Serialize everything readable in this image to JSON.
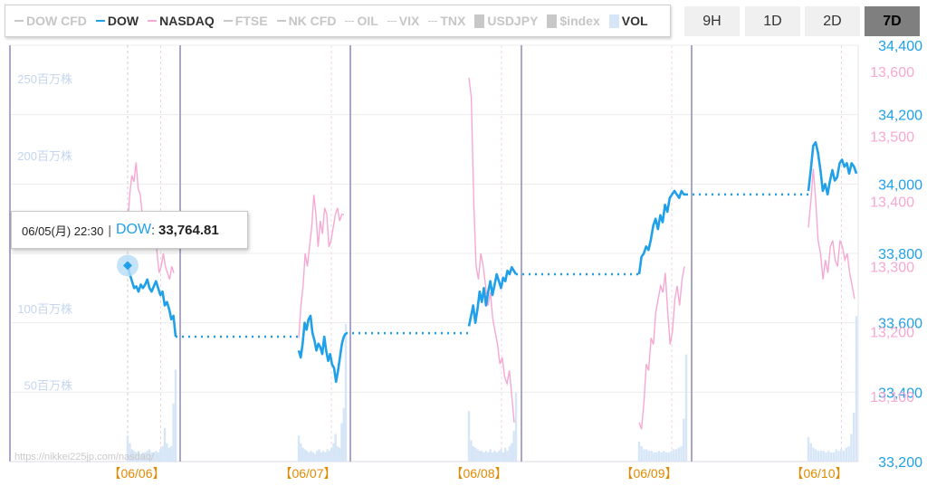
{
  "legend": [
    {
      "label": "DOW CFD",
      "color": "#c8c8c8",
      "style": "line",
      "muted": true
    },
    {
      "label": "DOW",
      "color": "#1fa0e8",
      "style": "line",
      "muted": false
    },
    {
      "label": "NASDAQ",
      "color": "#f7a8d2",
      "style": "line",
      "muted": false
    },
    {
      "label": "FTSE",
      "color": "#c8c8c8",
      "style": "line",
      "muted": true
    },
    {
      "label": "NK CFD",
      "color": "#c8c8c8",
      "style": "line",
      "muted": true
    },
    {
      "label": "OIL",
      "color": "#c8c8c8",
      "style": "dash",
      "muted": true
    },
    {
      "label": "VIX",
      "color": "#c8c8c8",
      "style": "dash",
      "muted": true
    },
    {
      "label": "TNX",
      "color": "#c8c8c8",
      "style": "dash",
      "muted": true
    },
    {
      "label": "USDJPY",
      "color": "#c8c8c8",
      "style": "box",
      "muted": true
    },
    {
      "label": "$index",
      "color": "#c8c8c8",
      "style": "box",
      "muted": true
    },
    {
      "label": "VOL",
      "color": "#d6e6f7",
      "style": "box",
      "muted": false
    }
  ],
  "range_buttons": [
    "9H",
    "1D",
    "2D",
    "7D"
  ],
  "active_range": "7D",
  "tooltip": {
    "timestamp": "06/05(月) 22:30",
    "series": "DOW",
    "value": "33,764.81"
  },
  "watermark": "https://nikkei225jp.com/nasdaq/",
  "colors": {
    "dow": "#1fa0e8",
    "nasdaq": "#f7a8d2",
    "vol": "#d6e6f7",
    "day_line": "#a9a6c8",
    "date_label": "#e08a00",
    "vol_axis": "#c3d6ee"
  },
  "chart_data": {
    "type": "line",
    "x_labels": [
      "【06/06】",
      "【06/07】",
      "【06/08】",
      "【06/09】",
      "【06/10】"
    ],
    "dow_axis": {
      "ticks": [
        33200,
        33400,
        33600,
        33800,
        34000,
        34200,
        34400
      ],
      "labels": [
        "33,200",
        "33,400",
        "33,600",
        "33,800",
        "34,000",
        "34,200",
        "34,400"
      ],
      "ylim": [
        33200,
        34400
      ]
    },
    "nasdaq_axis": {
      "ticks": [
        13100,
        13200,
        13300,
        13400,
        13500,
        13600
      ],
      "labels": [
        "13,100",
        "13,200",
        "13,300",
        "13,400",
        "13,500",
        "13,600"
      ],
      "ylim": [
        13000,
        13640
      ]
    },
    "vol_axis": {
      "ticks": [
        50,
        100,
        200,
        250
      ],
      "labels": [
        "50百万株",
        "100百万株",
        "200百万株",
        "250百万株"
      ],
      "ylim": [
        0,
        272
      ]
    },
    "days": [
      {
        "dow": [
          33765,
          33740,
          33720,
          33700,
          33705,
          33690,
          33710,
          33700,
          33710,
          33725,
          33700,
          33690,
          33705,
          33720,
          33700,
          33680,
          33690,
          33650,
          33660,
          33640,
          33610,
          33620,
          33560
        ],
        "dow_close": 33560,
        "nasdaq": [
          13360,
          13410,
          13440,
          13430,
          13460,
          13420,
          13410,
          13380,
          13360,
          13350,
          13380,
          13370,
          13340,
          13360,
          13320,
          13290,
          13300,
          13320,
          13300,
          13290,
          13280,
          13300,
          13290
        ],
        "vol": [
          17,
          12,
          8,
          7,
          6,
          7,
          5,
          6,
          6,
          7,
          8,
          6,
          6,
          7,
          6,
          8,
          10,
          22,
          12,
          9,
          10,
          38,
          60
        ]
      },
      {
        "dow": [
          33520,
          33500,
          33540,
          33600,
          33580,
          33610,
          33620,
          33570,
          33550,
          33520,
          33540,
          33530,
          33510,
          33560,
          33520,
          33490,
          33510,
          33480,
          33470,
          33430,
          33460,
          33500,
          33540,
          33560,
          33570
        ],
        "dow_close": 33570,
        "nasdaq": [
          13190,
          13240,
          13270,
          13320,
          13300,
          13330,
          13360,
          13410,
          13380,
          13330,
          13370,
          13350,
          13390,
          13380,
          13330,
          13340,
          13360,
          13380,
          13390,
          13370,
          13380,
          13380
        ],
        "vol": [
          17,
          12,
          9,
          8,
          7,
          6,
          7,
          6,
          5,
          7,
          8,
          6,
          7,
          6,
          8,
          7,
          9,
          12,
          18,
          10,
          9,
          25,
          35,
          90
        ]
      },
      {
        "dow": [
          33590,
          33620,
          33650,
          33600,
          33640,
          33690,
          33660,
          33700,
          33650,
          33690,
          33720,
          33680,
          33710,
          33740,
          33720,
          33700,
          33730,
          33720,
          33750,
          33740,
          33760,
          33750,
          33740
        ],
        "dow_close": 33740,
        "nasdaq": [
          13590,
          13560,
          13400,
          13300,
          13280,
          13320,
          13300,
          13270,
          13240,
          13260,
          13220,
          13200,
          13180,
          13150,
          13160,
          13130,
          13120,
          13140,
          13100,
          13060
        ],
        "vol": [
          33,
          14,
          10,
          9,
          8,
          7,
          7,
          6,
          7,
          6,
          8,
          6,
          7,
          6,
          7,
          8,
          6,
          9,
          7,
          10,
          12,
          20,
          45
        ]
      },
      {
        "dow": [
          33740,
          33790,
          33800,
          33820,
          33810,
          33840,
          33880,
          33900,
          33870,
          33910,
          33890,
          33940,
          33920,
          33960,
          33970,
          33980,
          33970,
          33960,
          33980,
          33970,
          33970
        ],
        "dow_close": 33970,
        "nasdaq": [
          13060,
          13050,
          13090,
          13150,
          13140,
          13190,
          13180,
          13230,
          13250,
          13270,
          13260,
          13290,
          13230,
          13180,
          13200,
          13250,
          13270,
          13240,
          13280,
          13300
        ],
        "vol": [
          13,
          10,
          8,
          8,
          7,
          7,
          6,
          6,
          7,
          6,
          7,
          6,
          6,
          7,
          8,
          8,
          9,
          10,
          28,
          70
        ]
      },
      {
        "dow": [
          33980,
          34040,
          34110,
          34120,
          34090,
          34040,
          33980,
          34000,
          33970,
          34010,
          34040,
          34010,
          34020,
          34060,
          34070,
          34050,
          34060,
          34030,
          34060,
          34050,
          34030
        ],
        "nasdaq": [
          13360,
          13400,
          13450,
          13400,
          13340,
          13320,
          13280,
          13310,
          13290,
          13330,
          13340,
          13310,
          13300,
          13340,
          13330,
          13310,
          13320,
          13290,
          13270,
          13250
        ],
        "vol": [
          16,
          12,
          9,
          8,
          7,
          7,
          7,
          6,
          7,
          6,
          6,
          8,
          7,
          8,
          7,
          9,
          10,
          18,
          32,
          95
        ]
      }
    ]
  }
}
